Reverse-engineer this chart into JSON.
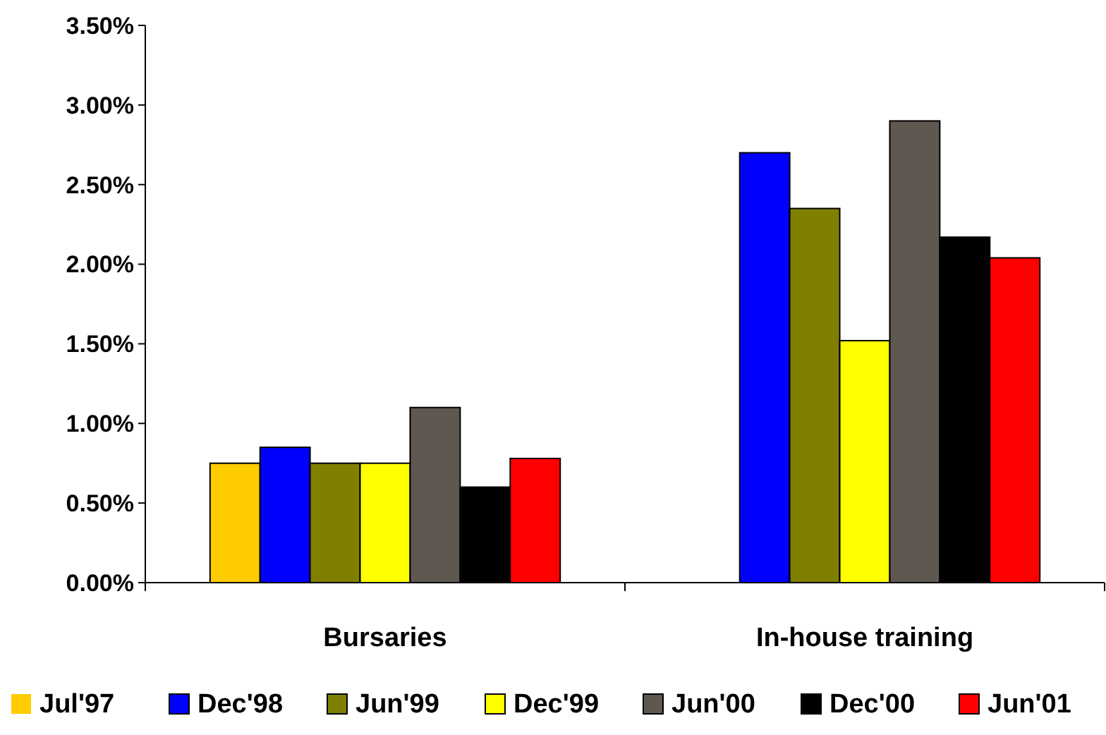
{
  "chart_data": {
    "type": "bar",
    "categories": [
      "Bursaries",
      "In-house training"
    ],
    "series": [
      {
        "name": "Jul'97",
        "color": "#ffcc00",
        "values": [
          0.75,
          null
        ]
      },
      {
        "name": "Dec'98",
        "color": "#0000ff",
        "values": [
          0.85,
          2.7
        ]
      },
      {
        "name": "Jun'99",
        "color": "#808000",
        "values": [
          0.75,
          2.35
        ]
      },
      {
        "name": "Dec'99",
        "color": "#ffff00",
        "values": [
          0.75,
          1.52
        ]
      },
      {
        "name": "Jun'00",
        "color": "#5f5850",
        "values": [
          1.1,
          2.9
        ]
      },
      {
        "name": "Dec'00",
        "color": "#000000",
        "values": [
          0.6,
          2.17
        ]
      },
      {
        "name": "Jun'01",
        "color": "#ff0000",
        "values": [
          0.78,
          2.04
        ]
      }
    ],
    "ylim": [
      0,
      3.5
    ],
    "yticks": [
      {
        "value": 0,
        "label": "0.00%"
      },
      {
        "value": 0.5,
        "label": "0.50%"
      },
      {
        "value": 1,
        "label": "1.00%"
      },
      {
        "value": 1.5,
        "label": "1.50%"
      },
      {
        "value": 2,
        "label": "2.00%"
      },
      {
        "value": 2.5,
        "label": "2.50%"
      },
      {
        "value": 3,
        "label": "3.00%"
      },
      {
        "value": 3.5,
        "label": "3.50%"
      }
    ],
    "legend": "bottom"
  }
}
